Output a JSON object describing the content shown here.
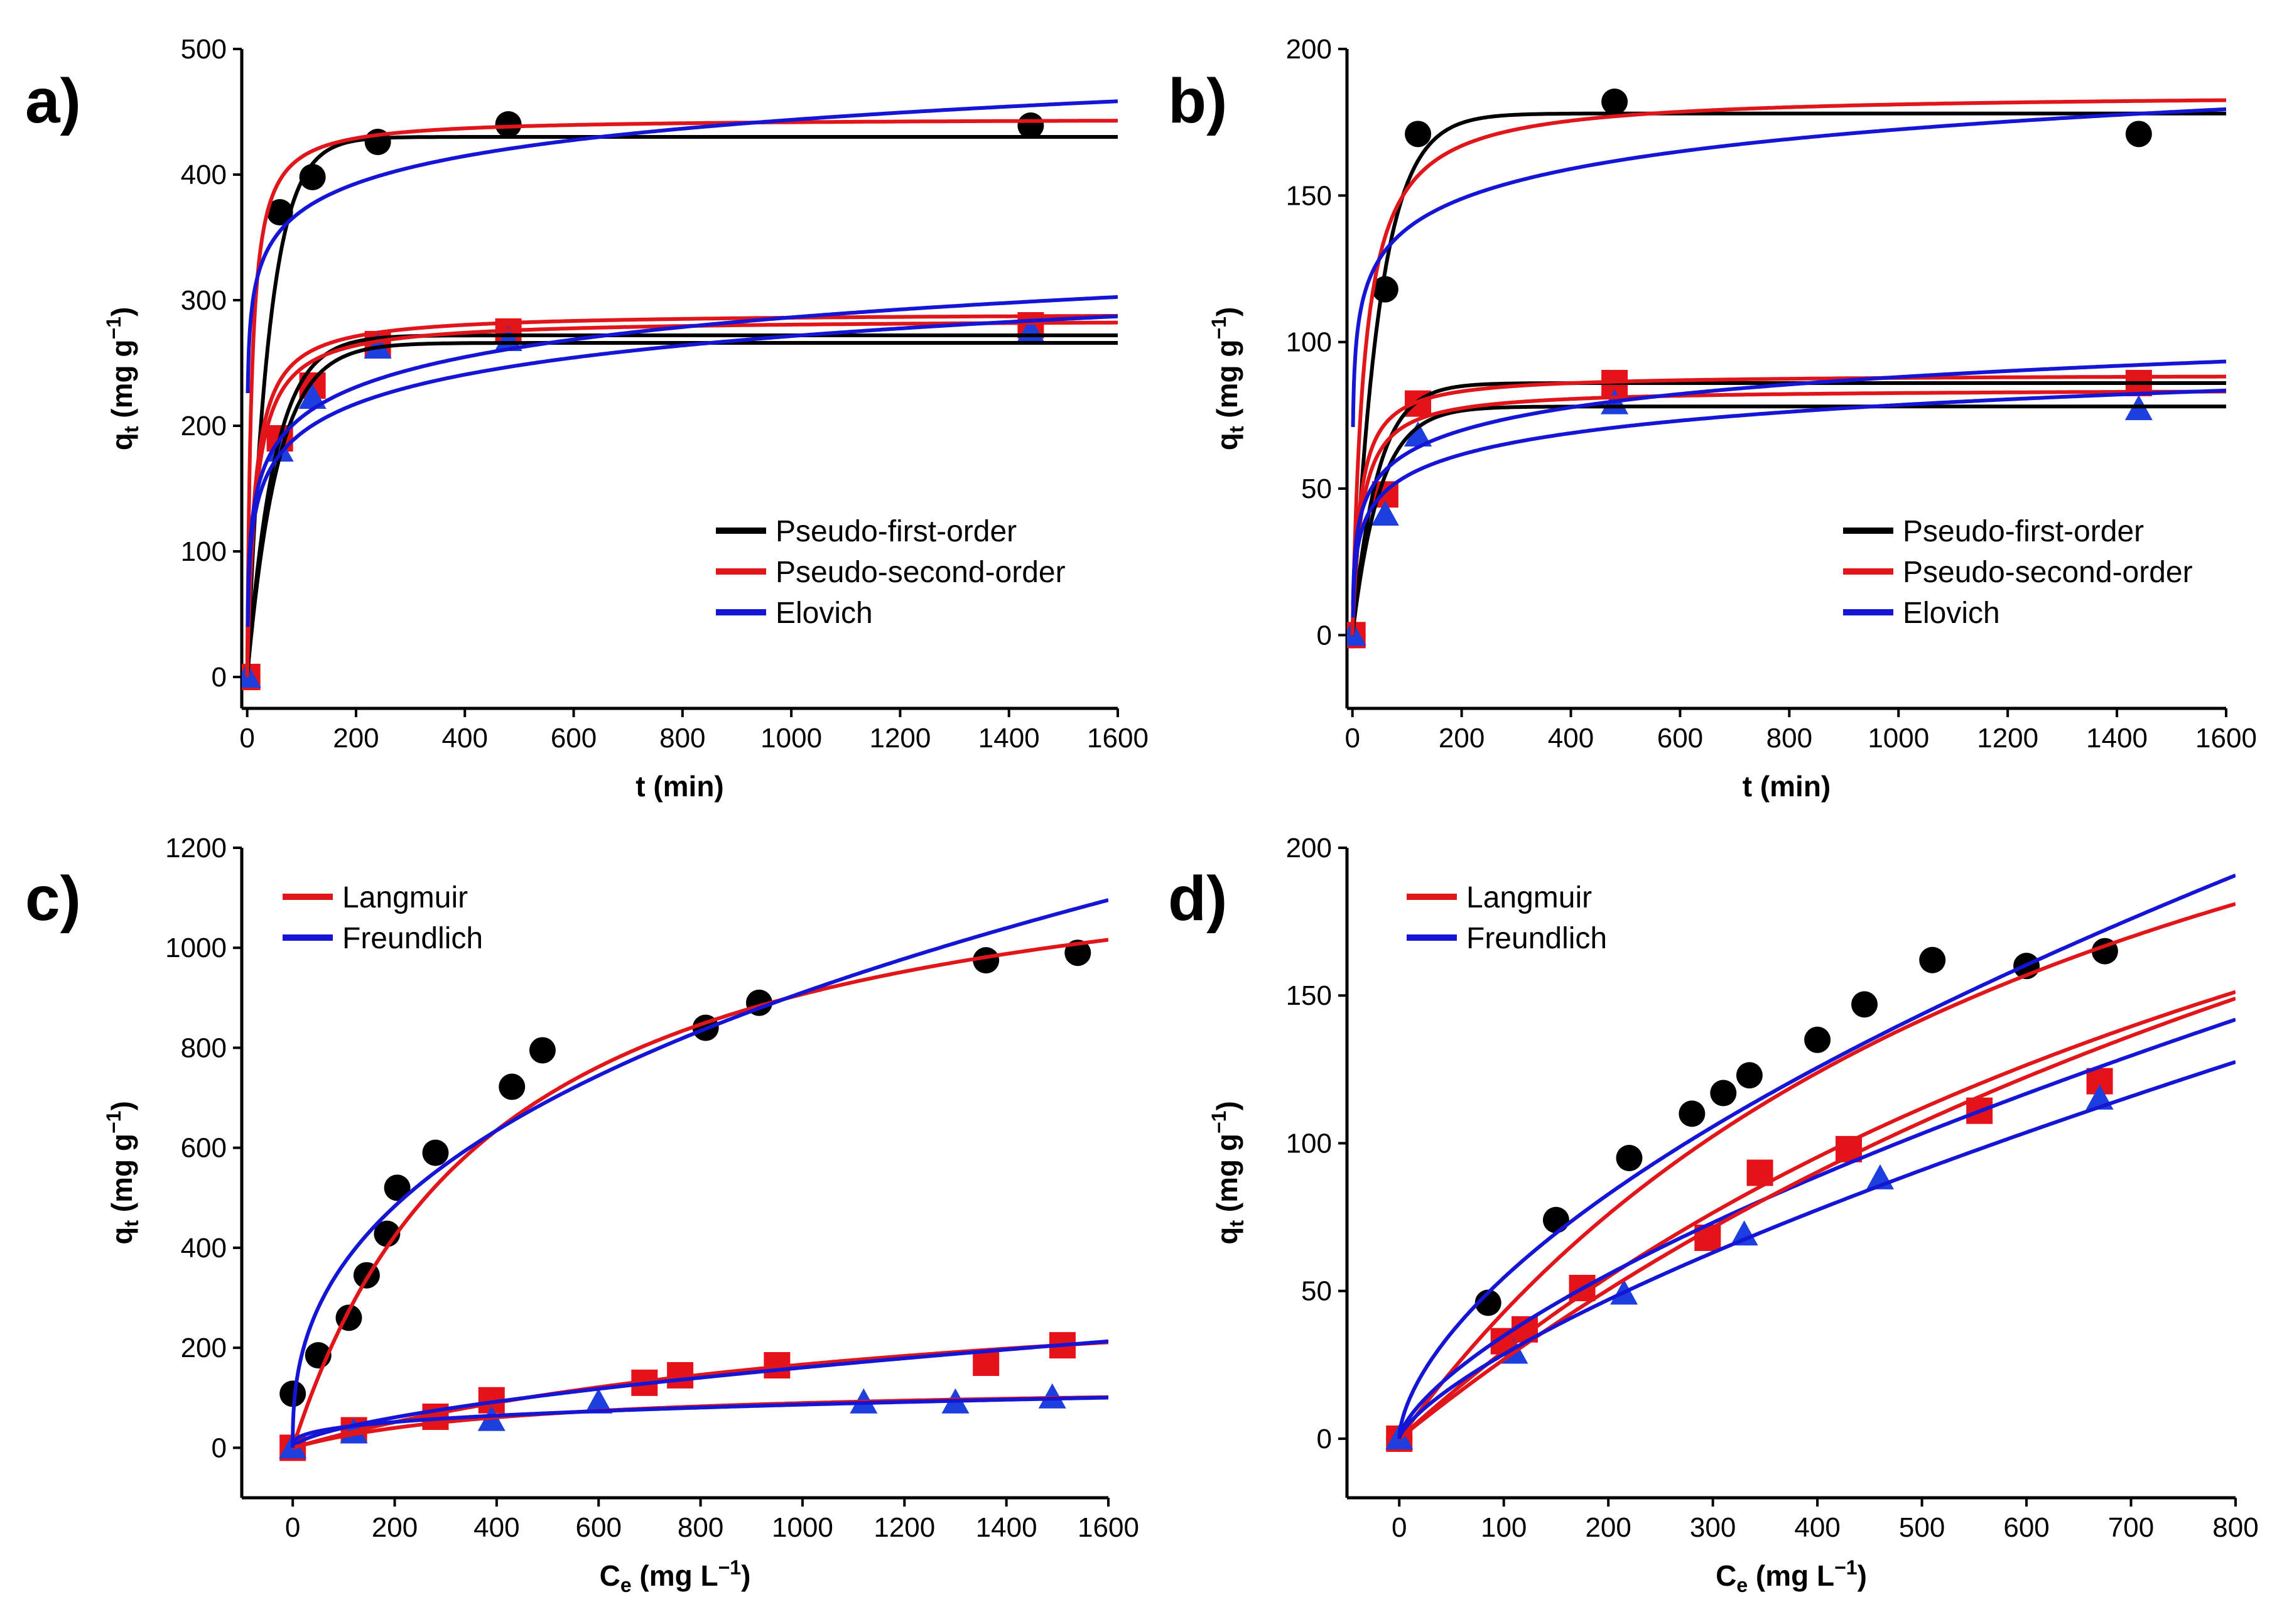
{
  "colors": {
    "pfo": "#000000",
    "pso": "#e0161b",
    "elovich": "#1515d6",
    "langmuir": "#e0161b",
    "freundlich": "#1515d6",
    "circle": "#000000",
    "square": "#e5121a",
    "triangle": "#1e3fe0"
  },
  "chart_data": [
    {
      "type": "scatter",
      "panel": "a)",
      "xlabel": "t (min)",
      "ylabel": {
        "main": "q",
        "sub": "t",
        "units": " (mg g",
        "exp": "−1",
        "close": ")"
      },
      "xlim": [
        -10,
        1600
      ],
      "ylim": [
        -25,
        500
      ],
      "xticks": [
        0,
        200,
        400,
        600,
        800,
        1000,
        1200,
        1400,
        1600
      ],
      "yticks": [
        0,
        100,
        200,
        300,
        400,
        500
      ],
      "legend": {
        "position": "bottom-right",
        "entries": [
          {
            "label": "Pseudo-first-order",
            "color": "#000000"
          },
          {
            "label": "Pseudo-second-order",
            "color": "#e0161b"
          },
          {
            "label": "Elovich",
            "color": "#1515d6"
          }
        ]
      },
      "series": [
        {
          "name": "circles",
          "marker": "circle",
          "color": "#000000",
          "x": [
            0,
            60,
            120,
            240,
            480,
            1440
          ],
          "y": [
            0,
            370,
            398,
            426,
            440,
            439
          ]
        },
        {
          "name": "squares",
          "marker": "square",
          "color": "#e5121a",
          "x": [
            0,
            60,
            120,
            240,
            480,
            1440
          ],
          "y": [
            0,
            190,
            232,
            265,
            275,
            280
          ]
        },
        {
          "name": "triangles",
          "marker": "triangle",
          "color": "#1e3fe0",
          "x": [
            0,
            60,
            120,
            240,
            480,
            1440
          ],
          "y": [
            0,
            180,
            222,
            262,
            268,
            275
          ]
        }
      ],
      "fits": [
        {
          "model": "pfo",
          "qe": 430,
          "k": 0.025,
          "color": "#000000"
        },
        {
          "model": "pso",
          "qe": 445,
          "k": 0.0003,
          "color": "#e0161b"
        },
        {
          "model": "elovich",
          "a": 226,
          "b": 31.5,
          "color": "#1515d6"
        },
        {
          "model": "pfo",
          "qe": 272,
          "k": 0.02,
          "color": "#000000"
        },
        {
          "model": "pfo",
          "qe": 266,
          "k": 0.018,
          "color": "#000000"
        },
        {
          "model": "pso",
          "qe": 290,
          "k": 0.00025,
          "color": "#e0161b"
        },
        {
          "model": "pso",
          "qe": 285,
          "k": 0.00022,
          "color": "#e0161b"
        },
        {
          "model": "elovich",
          "a": 48,
          "b": 34.5,
          "color": "#1515d6"
        },
        {
          "model": "elovich",
          "a": 40,
          "b": 33.5,
          "color": "#1515d6"
        }
      ]
    },
    {
      "type": "scatter",
      "panel": "b)",
      "xlabel": "t (min)",
      "ylabel": {
        "main": "q",
        "sub": "t",
        "units": " (mg g",
        "exp": "−1",
        "close": ")"
      },
      "xlim": [
        -10,
        1600
      ],
      "ylim": [
        -25,
        200
      ],
      "xticks": [
        0,
        200,
        400,
        600,
        800,
        1000,
        1200,
        1400,
        1600
      ],
      "yticks": [
        0,
        50,
        100,
        150,
        200
      ],
      "legend": {
        "position": "bottom-right",
        "entries": [
          {
            "label": "Pseudo-first-order",
            "color": "#000000"
          },
          {
            "label": "Pseudo-second-order",
            "color": "#e0161b"
          },
          {
            "label": "Elovich",
            "color": "#1515d6"
          }
        ]
      },
      "series": [
        {
          "name": "circles",
          "marker": "circle",
          "color": "#000000",
          "x": [
            0,
            60,
            120,
            480,
            1440
          ],
          "y": [
            0,
            118,
            171,
            182,
            171
          ]
        },
        {
          "name": "squares",
          "marker": "square",
          "color": "#e5121a",
          "x": [
            0,
            60,
            120,
            480,
            1440
          ],
          "y": [
            0,
            48,
            79,
            86,
            86
          ]
        },
        {
          "name": "triangles",
          "marker": "triangle",
          "color": "#1e3fe0",
          "x": [
            0,
            60,
            120,
            480,
            1440
          ],
          "y": [
            0,
            41,
            68,
            79,
            77
          ]
        }
      ],
      "fits": [
        {
          "model": "pfo",
          "qe": 178,
          "k": 0.02,
          "color": "#000000"
        },
        {
          "model": "pso",
          "qe": 185,
          "k": 0.00025,
          "color": "#e0161b"
        },
        {
          "model": "elovich",
          "a": 71,
          "b": 14.7,
          "color": "#1515d6"
        },
        {
          "model": "pfo",
          "qe": 86,
          "k": 0.022,
          "color": "#000000"
        },
        {
          "model": "pfo",
          "qe": 78,
          "k": 0.02,
          "color": "#000000"
        },
        {
          "model": "pso",
          "qe": 89,
          "k": 0.0008,
          "color": "#e0161b"
        },
        {
          "model": "pso",
          "qe": 84,
          "k": 0.0007,
          "color": "#e0161b"
        },
        {
          "model": "elovich",
          "a": 10,
          "b": 11.3,
          "color": "#1515d6"
        },
        {
          "model": "elovich",
          "a": 6,
          "b": 10.5,
          "color": "#1515d6"
        }
      ]
    },
    {
      "type": "scatter",
      "panel": "c)",
      "xlabel": {
        "main": "C",
        "sub": "e",
        "units": " (mg L",
        "exp": "−1",
        "close": ")"
      },
      "ylabel": {
        "main": "q",
        "sub": "t",
        "units": " (mg g",
        "exp": "−1",
        "close": ")"
      },
      "xlim": [
        -100,
        1600
      ],
      "ylim": [
        -100,
        1200
      ],
      "xticks": [
        0,
        200,
        400,
        600,
        800,
        1000,
        1200,
        1400,
        1600
      ],
      "yticks": [
        0,
        200,
        400,
        600,
        800,
        1000,
        1200
      ],
      "legend": {
        "position": "top-left",
        "entries": [
          {
            "label": "Langmuir",
            "color": "#e0161b"
          },
          {
            "label": "Freundlich",
            "color": "#1515d6"
          }
        ]
      },
      "series": [
        {
          "name": "circles",
          "marker": "circle",
          "color": "#000000",
          "x": [
            0,
            50,
            110,
            145,
            185,
            205,
            280,
            430,
            490,
            810,
            915,
            1360,
            1540
          ],
          "y": [
            108,
            185,
            260,
            345,
            428,
            520,
            590,
            722,
            795,
            840,
            890,
            975,
            990
          ]
        },
        {
          "name": "squares",
          "marker": "square",
          "color": "#e5121a",
          "x": [
            0,
            120,
            280,
            390,
            690,
            760,
            950,
            1360,
            1510
          ],
          "y": [
            0,
            35,
            62,
            95,
            130,
            145,
            165,
            170,
            205
          ]
        },
        {
          "name": "triangles",
          "marker": "triangle",
          "color": "#1e3fe0",
          "x": [
            0,
            120,
            390,
            600,
            1120,
            1300,
            1490
          ],
          "y": [
            0,
            30,
            55,
            90,
            90,
            90,
            100
          ]
        }
      ],
      "fits": [
        {
          "model": "langmuir",
          "qm": 1270,
          "KL": 0.0025,
          "color": "#e0161b"
        },
        {
          "model": "freundlich",
          "KF": 60,
          "n": 2.54,
          "color": "#1515d6"
        },
        {
          "model": "langmuir",
          "qm": 380,
          "KL": 0.00078,
          "color": "#e0161b"
        },
        {
          "model": "freundlich",
          "KF": 2.5,
          "n": 1.66,
          "color": "#1515d6"
        },
        {
          "model": "langmuir",
          "qm": 130,
          "KL": 0.0022,
          "color": "#e0161b"
        },
        {
          "model": "freundlich",
          "KF": 9.5,
          "n": 3.13,
          "color": "#1515d6"
        }
      ]
    },
    {
      "type": "scatter",
      "panel": "d)",
      "xlabel": {
        "main": "C",
        "sub": "e",
        "units": " (mg L",
        "exp": "−1",
        "close": ")"
      },
      "ylabel": {
        "main": "q",
        "sub": "t",
        "units": " (mg g",
        "exp": "−1",
        "close": ")"
      },
      "xlim": [
        -50,
        800
      ],
      "ylim": [
        -20,
        200
      ],
      "xticks": [
        0,
        100,
        200,
        300,
        400,
        500,
        600,
        700,
        800
      ],
      "yticks": [
        0,
        50,
        100,
        150,
        200
      ],
      "legend": {
        "position": "top-left",
        "entries": [
          {
            "label": "Langmuir",
            "color": "#e0161b"
          },
          {
            "label": "Freundlich",
            "color": "#1515d6"
          }
        ]
      },
      "series": [
        {
          "name": "circles",
          "marker": "circle",
          "color": "#000000",
          "x": [
            0,
            85,
            150,
            220,
            280,
            310,
            335,
            400,
            445,
            510,
            600,
            675
          ],
          "y": [
            0,
            46,
            74,
            95,
            110,
            117,
            123,
            135,
            147,
            162,
            160,
            165
          ]
        },
        {
          "name": "squares",
          "marker": "square",
          "color": "#e5121a",
          "x": [
            0,
            100,
            120,
            175,
            295,
            345,
            430,
            555,
            670
          ],
          "y": [
            0,
            33,
            37,
            51,
            68,
            90,
            98,
            111,
            121
          ]
        },
        {
          "name": "triangles",
          "marker": "triangle",
          "color": "#1e3fe0",
          "x": [
            0,
            110,
            215,
            330,
            460,
            670
          ],
          "y": [
            0,
            29,
            49,
            69,
            88,
            115
          ]
        }
      ],
      "fits": [
        {
          "model": "langmuir",
          "qm": 336,
          "KL": 0.00146,
          "color": "#e0161b"
        },
        {
          "model": "freundlich",
          "KF": 3.4,
          "n": 1.66,
          "color": "#1515d6"
        },
        {
          "model": "langmuir",
          "qm": 366,
          "KL": 0.00088,
          "color": "#e0161b"
        },
        {
          "model": "freundlich",
          "KF": 1.55,
          "n": 1.48,
          "color": "#1515d6"
        },
        {
          "model": "langmuir",
          "qm": 427,
          "KL": 0.00067,
          "color": "#e0161b"
        },
        {
          "model": "freundlich",
          "KF": 1.04,
          "n": 1.39,
          "color": "#1515d6"
        }
      ]
    }
  ]
}
